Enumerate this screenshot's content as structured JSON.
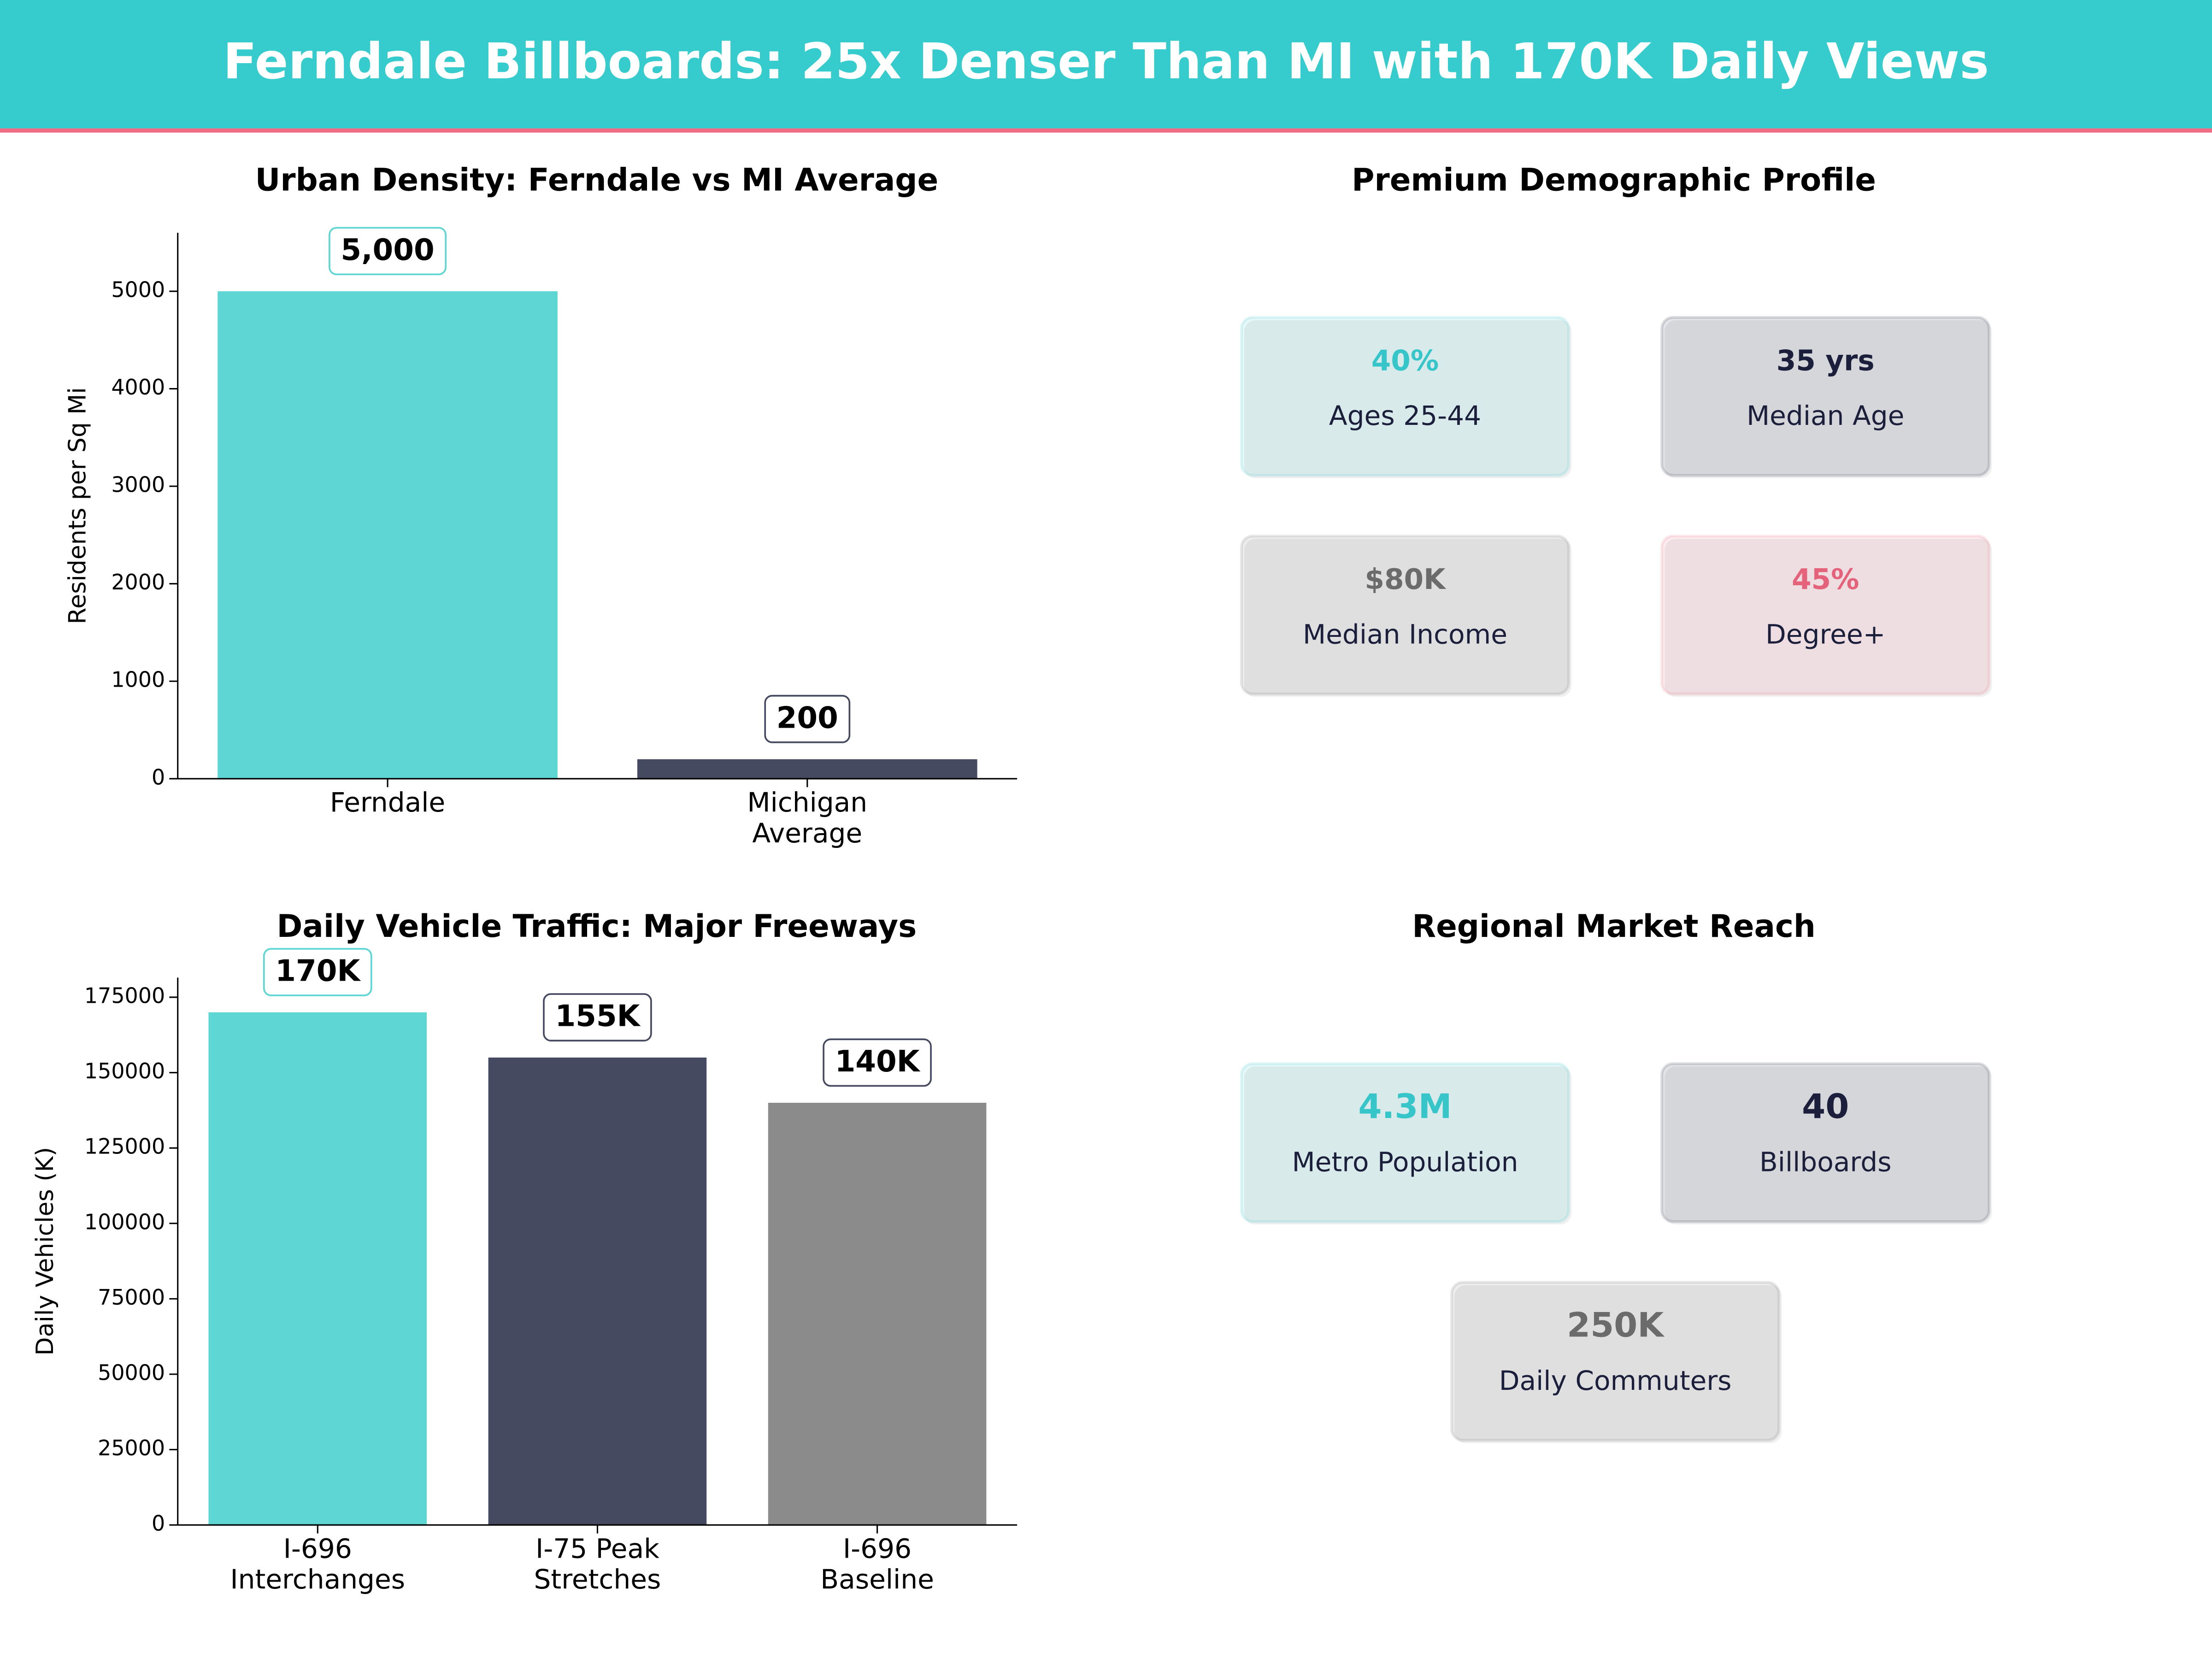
{
  "title": "Ferndale Billboards: 25x Denser Than MI with 170K Daily Views",
  "chart_data": [
    {
      "type": "bar",
      "title": "Urban Density: Ferndale vs MI Average",
      "categories": [
        "Ferndale",
        "Michigan\nAverage"
      ],
      "values": [
        5000,
        200
      ],
      "value_labels": [
        "5,000",
        "200"
      ],
      "colors": [
        "#5ed6d4",
        "#454a60"
      ],
      "ylabel": "Residents per Sq Mi",
      "ylim": [
        0,
        5600
      ],
      "yticks": [
        0,
        1000,
        2000,
        3000,
        4000,
        5000
      ]
    },
    {
      "type": "bar",
      "title": "Daily Vehicle Traffic: Major Freeways",
      "categories": [
        "I-696\nInterchanges",
        "I-75 Peak\nStretches",
        "I-696\nBaseline"
      ],
      "values": [
        170000,
        155000,
        140000
      ],
      "value_labels": [
        "170K",
        "155K",
        "140K"
      ],
      "colors": [
        "#5ed6d4",
        "#454a60",
        "#8b8b8b"
      ],
      "ylabel": "Daily Vehicles (K)",
      "ylim": [
        0,
        181500
      ],
      "yticks": [
        0,
        25000,
        50000,
        75000,
        100000,
        125000,
        150000,
        175000
      ]
    }
  ],
  "panels": [
    {
      "title": "Premium Demographic Profile",
      "cards": [
        {
          "value": "40%",
          "label": "Ages 25-44",
          "color": "#36c5c9"
        },
        {
          "value": "35 yrs",
          "label": "Median Age",
          "color": "#1b1f3b"
        },
        {
          "value": "$80K",
          "label": "Median Income",
          "color": "#6b6b6b"
        },
        {
          "value": "45%",
          "label": "Degree+",
          "color": "#e5637a"
        }
      ]
    },
    {
      "title": "Regional Market Reach",
      "cards": [
        {
          "value": "4.3M",
          "label": "Metro Population",
          "color": "#36c5c9"
        },
        {
          "value": "40",
          "label": "Billboards",
          "color": "#1b1f3b"
        },
        {
          "value": "250K",
          "label": "Daily Commuters",
          "color": "#6b6b6b"
        }
      ]
    }
  ]
}
